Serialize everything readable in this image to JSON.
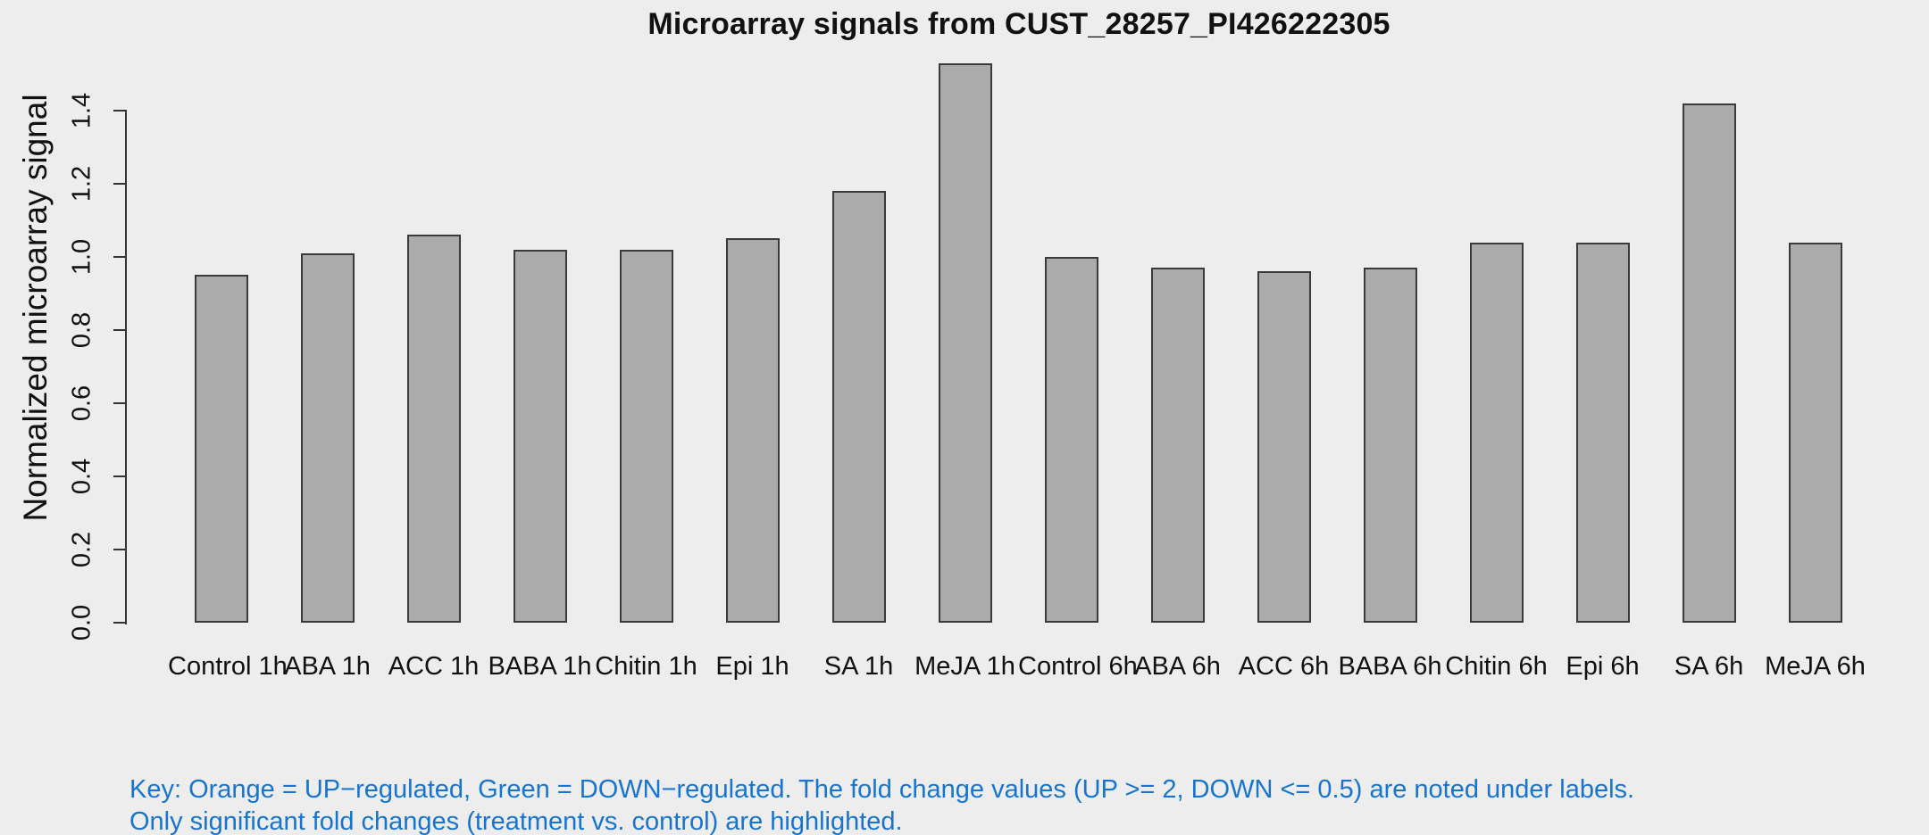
{
  "window": {
    "background": "#EDEDED",
    "text_color": "#111111"
  },
  "chart_data": {
    "type": "bar",
    "title": "Microarray signals from CUST_28257_PI426222305",
    "xlabel": "",
    "ylabel": "Normalized microarray signal",
    "categories": [
      "Control 1h",
      "ABA 1h",
      "ACC 1h",
      "BABA 1h",
      "Chitin 1h",
      "Epi 1h",
      "SA 1h",
      "MeJA 1h",
      "Control 6h",
      "ABA 6h",
      "ACC 6h",
      "BABA 6h",
      "Chitin 6h",
      "Epi 6h",
      "SA 6h",
      "MeJA 6h"
    ],
    "values": [
      0.95,
      1.01,
      1.06,
      1.02,
      1.02,
      1.05,
      1.18,
      1.53,
      1.0,
      0.97,
      0.96,
      0.97,
      1.04,
      1.04,
      1.42,
      1.04
    ],
    "yticks": [
      0.0,
      0.2,
      0.4,
      0.6,
      0.8,
      1.0,
      1.2,
      1.4
    ],
    "ytick_labels": [
      "0.0",
      "0.2",
      "0.4",
      "0.6",
      "0.8",
      "1.0",
      "1.2",
      "1.4"
    ],
    "ylim": [
      0,
      1.53
    ],
    "grid": false,
    "legend": "none",
    "bar_fill": "#ABABAB",
    "bar_border": "#3A3A3A"
  },
  "key_note": {
    "line1": "Key: Orange = UP−regulated, Green = DOWN−regulated. The fold change values (UP >= 2, DOWN <= 0.5) are noted under labels.",
    "line2": "Only significant fold changes (treatment vs. control) are highlighted.",
    "color": "#1874CD"
  }
}
